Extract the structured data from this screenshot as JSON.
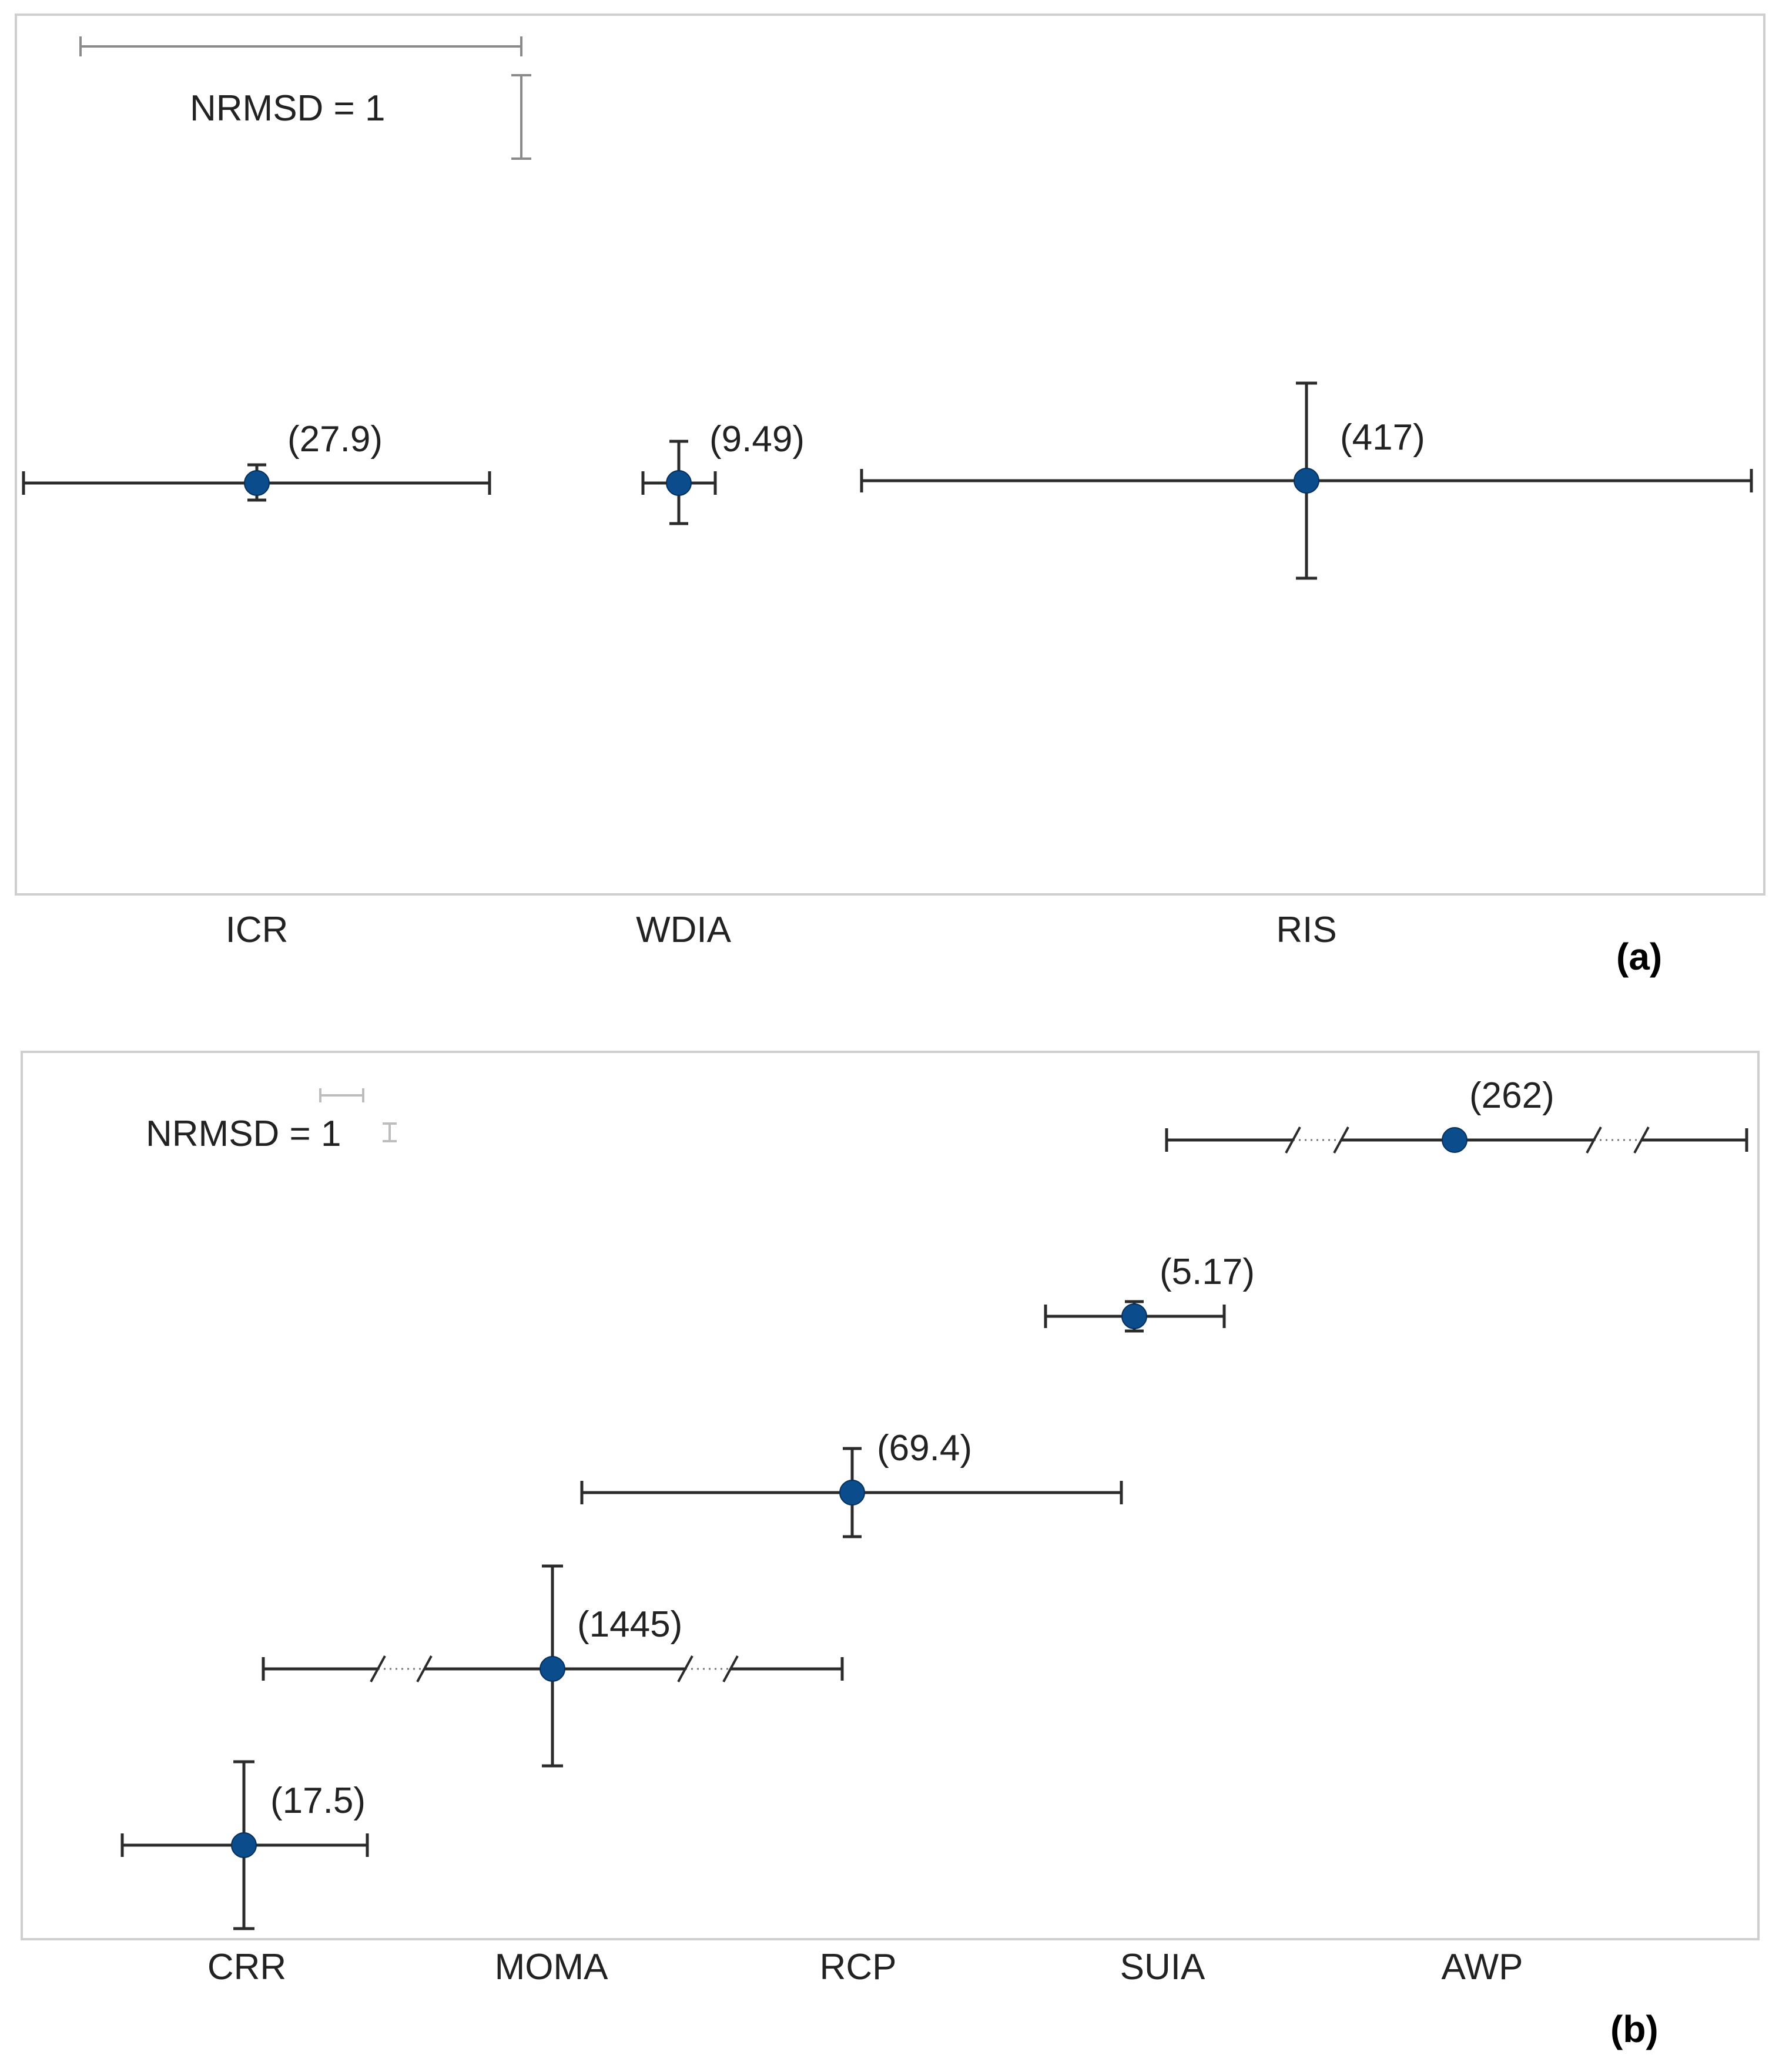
{
  "chart_data": [
    {
      "panel": "(a)",
      "type": "scatter",
      "description_note": "error-bar glyph plot",
      "reference_label": "NRMSD = 1",
      "categories": [
        "ICR",
        "WDIA",
        "RIS"
      ],
      "points": [
        {
          "name": "ICR",
          "label": "(27.9)",
          "value": 27.9
        },
        {
          "name": "WDIA",
          "label": "(9.49)",
          "value": 9.49
        },
        {
          "name": "RIS",
          "label": "(417)",
          "value": 417
        }
      ],
      "marker_color": "#0b4c8c"
    },
    {
      "panel": "(b)",
      "type": "scatter",
      "reference_label": "NRMSD = 1",
      "categories": [
        "CRR",
        "MOMA",
        "RCP",
        "SUIA",
        "AWP"
      ],
      "points": [
        {
          "name": "CRR",
          "label": "(17.5)",
          "value": 17.5
        },
        {
          "name": "MOMA",
          "label": "(1445)",
          "value": 1445
        },
        {
          "name": "RCP",
          "label": "(69.4)",
          "value": 69.4
        },
        {
          "name": "SUIA",
          "label": "(5.17)",
          "value": 5.17
        },
        {
          "name": "AWP",
          "label": "(262)",
          "value": 262
        }
      ],
      "marker_color": "#0b4c8c"
    }
  ]
}
